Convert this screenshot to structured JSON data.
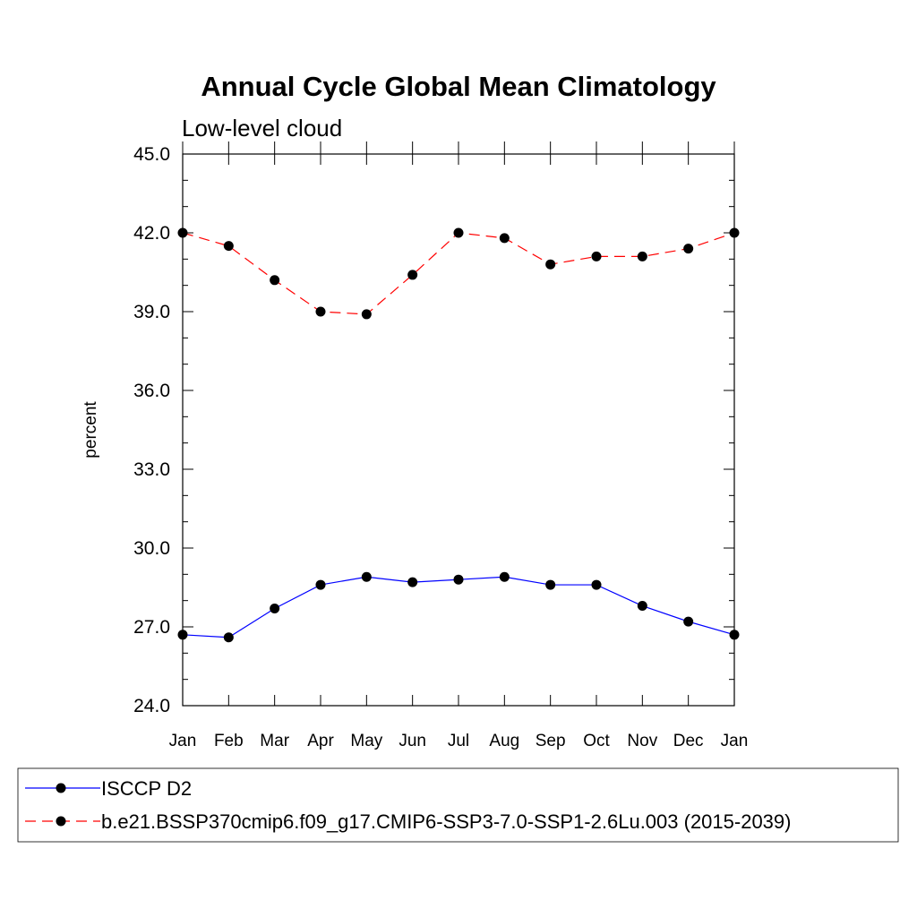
{
  "chart_data": {
    "type": "line",
    "title": "Annual Cycle Global Mean Climatology",
    "subtitle": "Low-level cloud",
    "xlabel": "",
    "ylabel": "percent",
    "ylim": [
      24.0,
      45.0
    ],
    "yticks": [
      "24.0",
      "27.0",
      "30.0",
      "33.0",
      "36.0",
      "39.0",
      "42.0",
      "45.0"
    ],
    "ytick_values": [
      24,
      27,
      30,
      33,
      36,
      39,
      42,
      45
    ],
    "categories": [
      "Jan",
      "Feb",
      "Mar",
      "Apr",
      "May",
      "Jun",
      "Jul",
      "Aug",
      "Sep",
      "Oct",
      "Nov",
      "Dec",
      "Jan"
    ],
    "grid": false,
    "legend_position": "bottom",
    "series": [
      {
        "name": "ISCCP D2",
        "color": "#0000ff",
        "style": "solid",
        "marker": "filled-circle",
        "values": [
          26.7,
          26.6,
          27.7,
          28.6,
          28.9,
          28.7,
          28.8,
          28.9,
          28.6,
          28.6,
          27.8,
          27.2,
          26.7
        ]
      },
      {
        "name": "b.e21.BSSP370cmip6.f09_g17.CMIP6-SSP3-7.0-SSP1-2.6Lu.003 (2015-2039)",
        "color": "#ff0000",
        "style": "dashed",
        "marker": "filled-circle",
        "values": [
          42.0,
          41.5,
          40.2,
          39.0,
          38.9,
          40.4,
          42.0,
          41.8,
          40.8,
          41.1,
          41.1,
          41.4,
          42.0
        ]
      }
    ]
  }
}
